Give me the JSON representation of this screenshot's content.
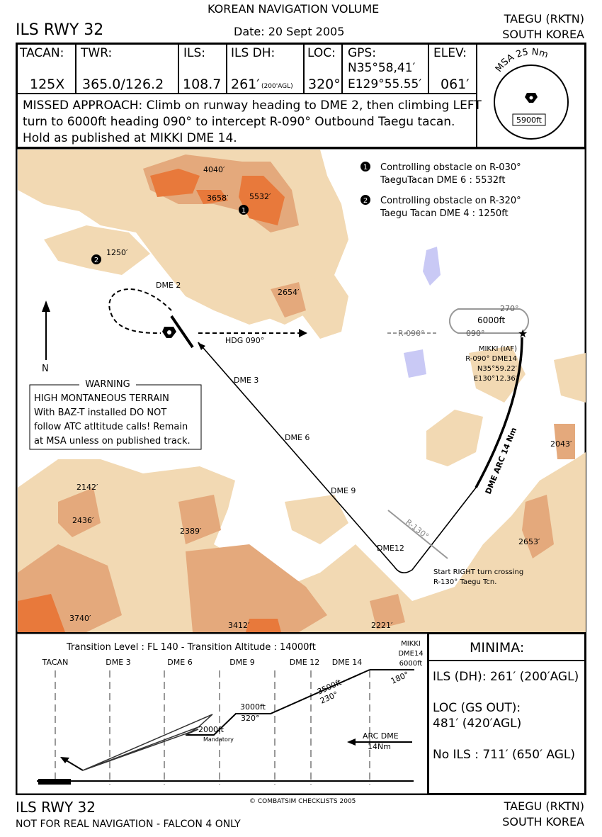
{
  "header": {
    "volume": "KOREAN NAVIGATION VOLUME",
    "procedure": "ILS RWY 32",
    "date": "Date: 20 Sept 2005",
    "airport": "TAEGU (RKTN)",
    "country": "SOUTH KOREA"
  },
  "info": {
    "tacan": {
      "label": "TACAN:",
      "value": "125X"
    },
    "twr": {
      "label": "TWR:",
      "value": "365.0/126.2"
    },
    "ils": {
      "label": "ILS:",
      "value": "108.7"
    },
    "ils_dh": {
      "label": "ILS DH:",
      "value": "261′",
      "sub": "(200'AGL)"
    },
    "loc": {
      "label": "LOC:",
      "value": "320°"
    },
    "gps": {
      "label": "GPS:",
      "lat": "N35°58,41′",
      "lon": "E129°55.55′"
    },
    "elev": {
      "label": "ELEV:",
      "value": "061′"
    },
    "missed": [
      "MISSED APPROACH: Climb on runway heading to DME 2, then climbing LEFT",
      "turn to 6000ft heading 090° to intercept R-090° Outbound Taegu tacan.",
      "Hold as published at MIKKI DME 14."
    ],
    "msa": {
      "title": "MSA 25 Nm",
      "alt": "5900ft"
    }
  },
  "map": {
    "notes": [
      {
        "num": "1",
        "line1": "Controlling obstacle on R-030°",
        "line2": "TaeguTacan DME 6 : 5532ft"
      },
      {
        "num": "2",
        "line1": "Controlling obstacle on R-320°",
        "line2": "Taegu Tacan DME 4 : 1250ft"
      }
    ],
    "elevations": [
      "4040′",
      "3658′",
      "5532′",
      "1250′",
      "2654′",
      "2043′",
      "2142′",
      "2436′",
      "2389′",
      "2653′",
      "3740′",
      "3412′",
      "2221′"
    ],
    "labels": {
      "dme2": "DME 2",
      "dme3": "DME 3",
      "dme6": "DME 6",
      "dme9": "DME 9",
      "dme12": "DME12",
      "hdg": "HDG 090°",
      "north": "N",
      "r090": "R-090°",
      "hold_out": "270°",
      "hold_in": "090°",
      "hold_alt": "6000ft",
      "r130": "R-130°",
      "arc": "DME ARC 14 Nm"
    },
    "mikki": [
      "MIKKI (IAF)",
      "R-090° DME14",
      "N35°59.22′",
      "E130°12.36′"
    ],
    "turn": [
      "Start RIGHT turn crossing",
      "R-130° Taegu Tcn."
    ],
    "warning": {
      "title": "WARNING",
      "lines": [
        "HIGH MONTANEOUS TERRAIN",
        "With BAZ-T installed DO NOT",
        "follow ATC atltitude calls! Remain",
        "at MSA unless on published track."
      ]
    }
  },
  "profile": {
    "transition": "Transition Level : FL 140  -  Transition Altitude : 14000ft",
    "fixes": [
      "TACAN",
      "DME 3",
      "DME 6",
      "DME 9",
      "DME 12",
      "DME 14"
    ],
    "mikki": [
      "MIKKI",
      "DME14",
      "6000ft"
    ],
    "alt2000": "2000ft",
    "mandatory": "Mandatory",
    "alt3000": "3000ft",
    "hdg320": "320°",
    "alt3500": "3500ft",
    "hdg230": "230°",
    "hdg180": "180°",
    "arc1": "ARC DME",
    "arc2": "14Nm"
  },
  "minima": {
    "title": "MINIMA:",
    "ils": "ILS (DH): 261′ (200′AGL)",
    "loc1": "LOC (GS OUT):",
    "loc2": "481′ (420′AGL)",
    "noils": "No ILS : 711′ (650′ AGL)"
  },
  "footer": {
    "procedure": "ILS RWY 32",
    "disclaimer": "NOT FOR REAL NAVIGATION - FALCON 4 ONLY",
    "copyright": "© COMBATSIM CHECKLISTS 2005",
    "airport": "TAEGU (RKTN)",
    "country": "SOUTH KOREA"
  },
  "colors": {
    "terrain_light": "#f2d9b3",
    "terrain_mid": "#e4a97c",
    "terrain_dark": "#e8793b",
    "water": "#c9c9f5"
  }
}
